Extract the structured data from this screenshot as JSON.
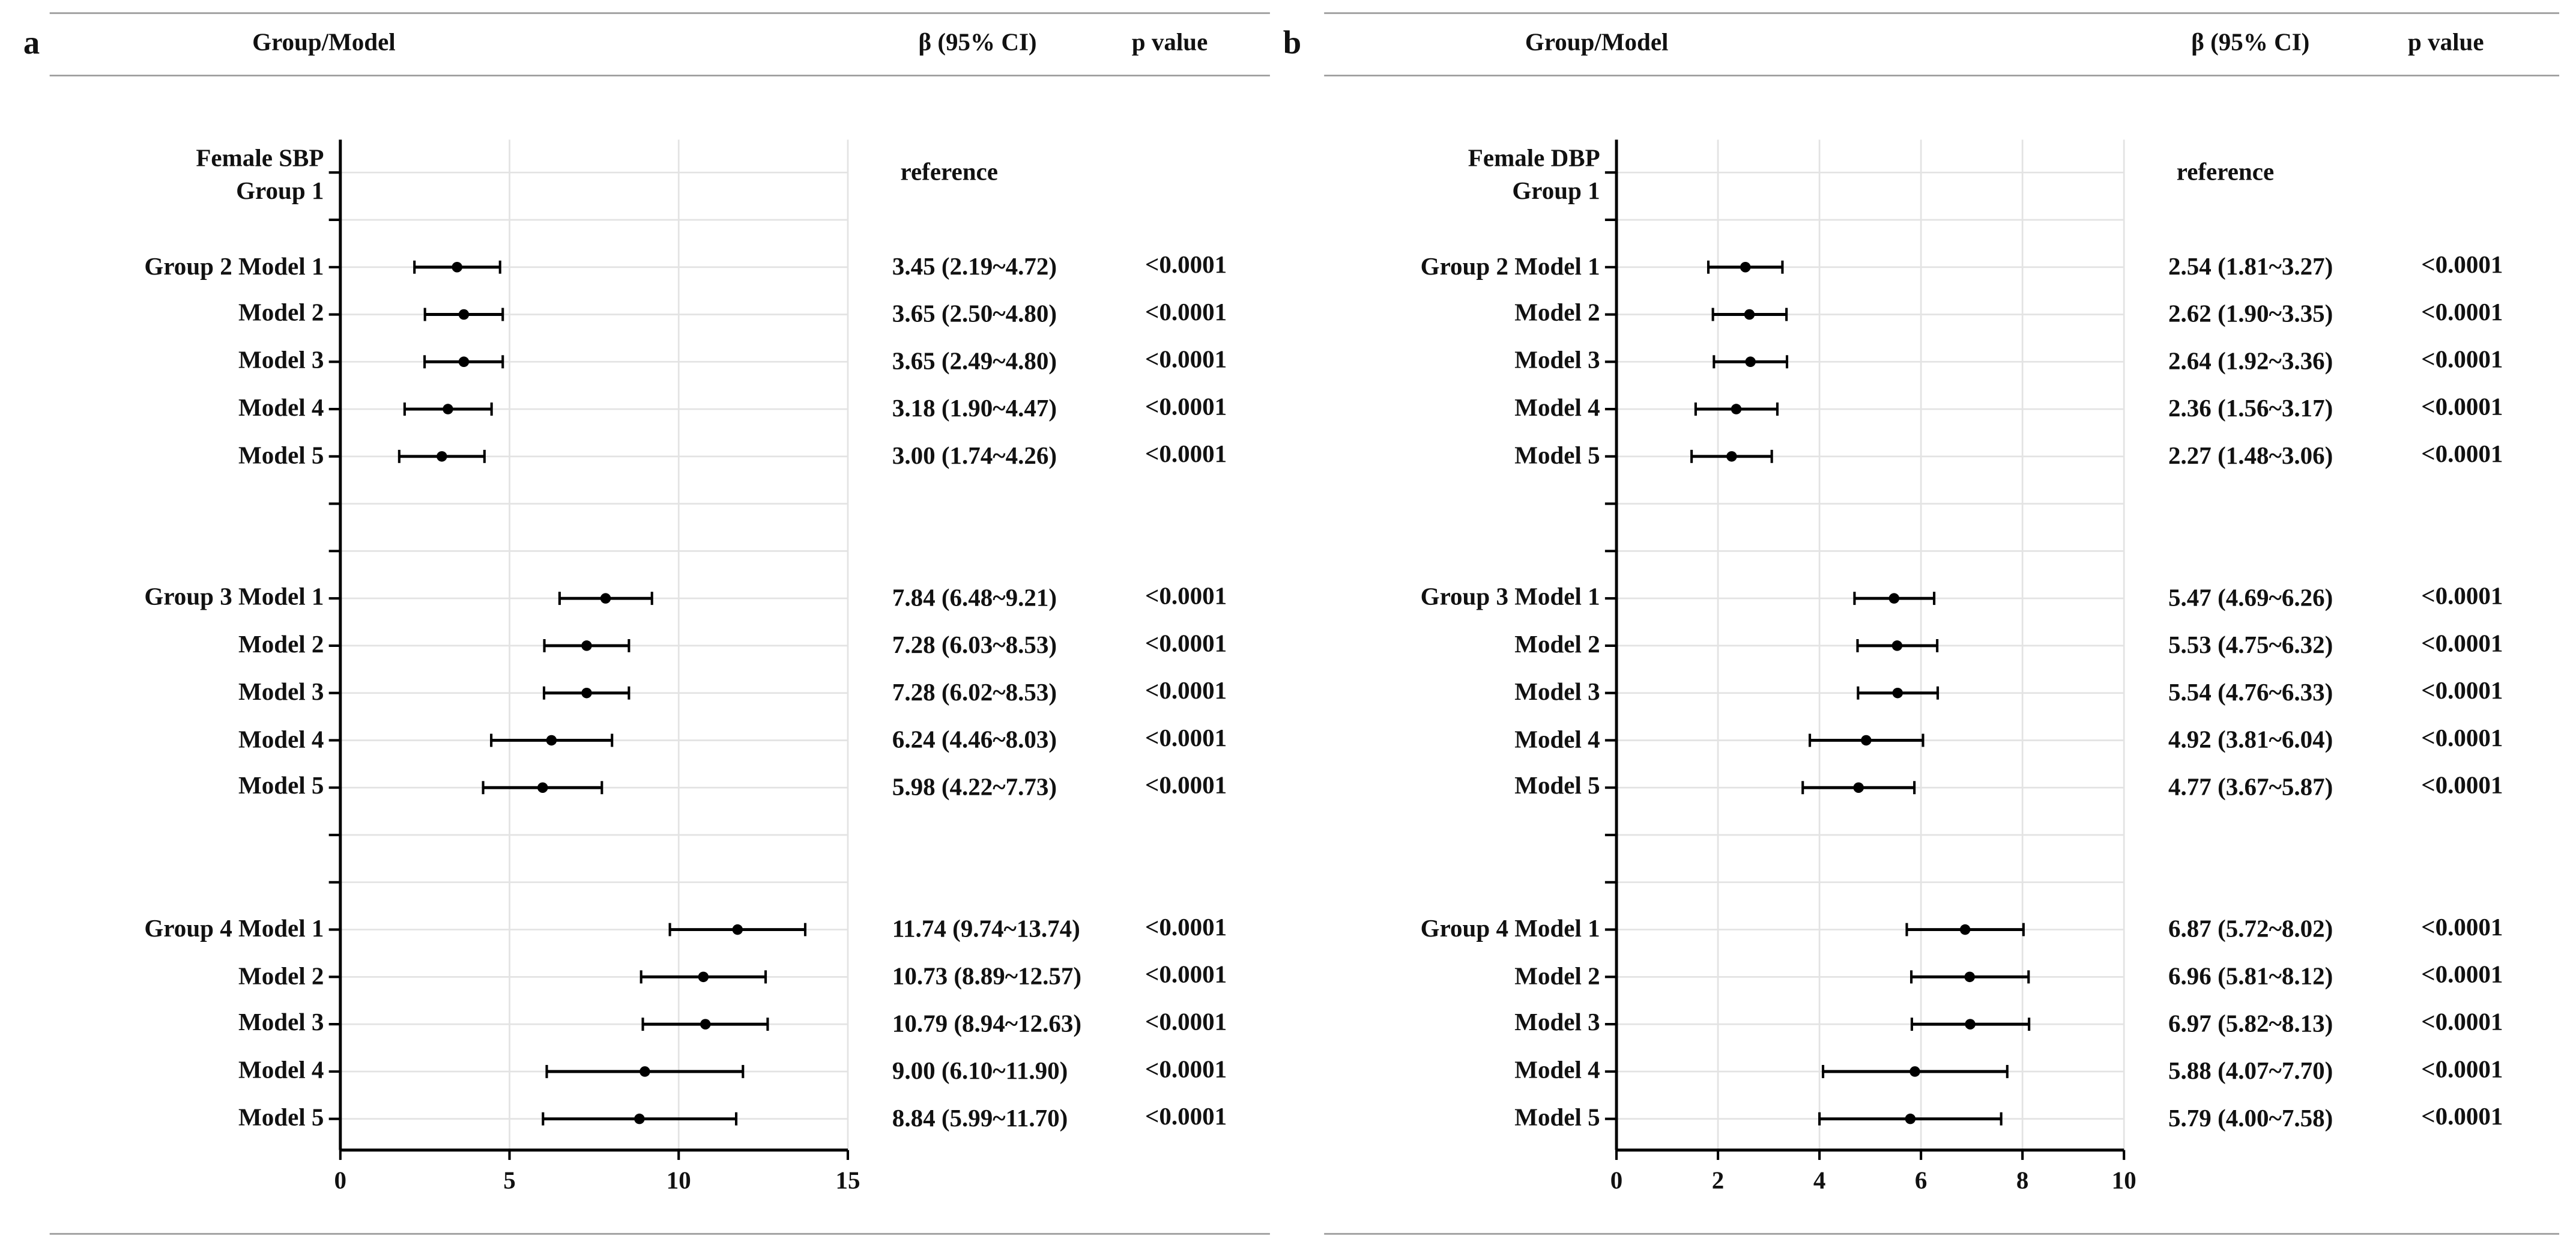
{
  "chart_data": [
    {
      "type": "forest",
      "panel_label": "a",
      "headers": {
        "group": "Group/Model",
        "ci": "β (95% CI)",
        "p": "p value"
      },
      "categories": [
        "Female SBP\nGroup 1",
        null,
        "Group 2 Model 1",
        "Model 2",
        "Model 3",
        "Model 4",
        "Model 5",
        null,
        null,
        "Group 3 Model 1",
        "Model 2",
        "Model 3",
        "Model 4",
        "Model 5",
        null,
        null,
        "Group 4 Model 1",
        "Model 2",
        "Model 3",
        "Model 4",
        "Model 5"
      ],
      "values": [
        null,
        null,
        3.45,
        3.65,
        3.65,
        3.18,
        3.0,
        null,
        null,
        7.84,
        7.28,
        7.28,
        6.24,
        5.98,
        null,
        null,
        11.74,
        10.73,
        10.79,
        9.0,
        8.84
      ],
      "lower": [
        null,
        null,
        2.19,
        2.5,
        2.49,
        1.9,
        1.74,
        null,
        null,
        6.48,
        6.03,
        6.02,
        4.46,
        4.22,
        null,
        null,
        9.74,
        8.89,
        8.94,
        6.1,
        5.99
      ],
      "upper": [
        null,
        null,
        4.72,
        4.8,
        4.8,
        4.47,
        4.26,
        null,
        null,
        9.21,
        8.53,
        8.53,
        8.03,
        7.73,
        null,
        null,
        13.74,
        12.57,
        12.63,
        11.9,
        11.7
      ],
      "value_labels": [
        "reference",
        null,
        "3.45 (2.19~4.72)",
        "3.65 (2.50~4.80)",
        "3.65 (2.49~4.80)",
        "3.18 (1.90~4.47)",
        "3.00 (1.74~4.26)",
        null,
        null,
        "7.84 (6.48~9.21)",
        "7.28 (6.03~8.53)",
        "7.28 (6.02~8.53)",
        "6.24 (4.46~8.03)",
        "5.98 (4.22~7.73)",
        null,
        null,
        "11.74 (9.74~13.74)",
        "10.73 (8.89~12.57)",
        "10.79 (8.94~12.63)",
        "9.00 (6.10~11.90)",
        "8.84 (5.99~11.70)"
      ],
      "p_labels": [
        null,
        null,
        "<0.0001",
        "<0.0001",
        "<0.0001",
        "<0.0001",
        "<0.0001",
        null,
        null,
        "<0.0001",
        "<0.0001",
        "<0.0001",
        "<0.0001",
        "<0.0001",
        null,
        null,
        "<0.0001",
        "<0.0001",
        "<0.0001",
        "<0.0001",
        "<0.0001"
      ],
      "color": "#000000",
      "xlim": [
        0,
        15
      ],
      "xticks": [
        0,
        5,
        10,
        15
      ],
      "grid": true
    },
    {
      "type": "forest",
      "panel_label": "b",
      "headers": {
        "group": "Group/Model",
        "ci": "β (95% CI)",
        "p": "p value"
      },
      "categories": [
        "Female DBP\nGroup 1",
        null,
        "Group 2 Model 1",
        "Model 2",
        "Model 3",
        "Model 4",
        "Model 5",
        null,
        null,
        "Group 3 Model 1",
        "Model 2",
        "Model 3",
        "Model 4",
        "Model 5",
        null,
        null,
        "Group 4 Model 1",
        "Model 2",
        "Model 3",
        "Model 4",
        "Model 5"
      ],
      "values": [
        null,
        null,
        2.54,
        2.62,
        2.64,
        2.36,
        2.27,
        null,
        null,
        5.47,
        5.53,
        5.54,
        4.92,
        4.77,
        null,
        null,
        6.87,
        6.96,
        6.97,
        5.88,
        5.79
      ],
      "lower": [
        null,
        null,
        1.81,
        1.9,
        1.92,
        1.56,
        1.48,
        null,
        null,
        4.69,
        4.75,
        4.76,
        3.81,
        3.67,
        null,
        null,
        5.72,
        5.81,
        5.82,
        4.07,
        4.0
      ],
      "upper": [
        null,
        null,
        3.27,
        3.35,
        3.36,
        3.17,
        3.06,
        null,
        null,
        6.26,
        6.32,
        6.33,
        6.04,
        5.87,
        null,
        null,
        8.02,
        8.12,
        8.13,
        7.7,
        7.58
      ],
      "value_labels": [
        "reference",
        null,
        "2.54 (1.81~3.27)",
        "2.62 (1.90~3.35)",
        "2.64 (1.92~3.36)",
        "2.36 (1.56~3.17)",
        "2.27 (1.48~3.06)",
        null,
        null,
        "5.47 (4.69~6.26)",
        "5.53 (4.75~6.32)",
        "5.54 (4.76~6.33)",
        "4.92 (3.81~6.04)",
        "4.77 (3.67~5.87)",
        null,
        null,
        "6.87 (5.72~8.02)",
        "6.96 (5.81~8.12)",
        "6.97 (5.82~8.13)",
        "5.88 (4.07~7.70)",
        "5.79 (4.00~7.58)"
      ],
      "p_labels": [
        null,
        null,
        "<0.0001",
        "<0.0001",
        "<0.0001",
        "<0.0001",
        "<0.0001",
        null,
        null,
        "<0.0001",
        "<0.0001",
        "<0.0001",
        "<0.0001",
        "<0.0001",
        null,
        null,
        "<0.0001",
        "<0.0001",
        "<0.0001",
        "<0.0001",
        "<0.0001"
      ],
      "color": "#000000",
      "xlim": [
        0,
        10
      ],
      "xticks": [
        0,
        2,
        4,
        6,
        8,
        10
      ],
      "grid": true
    }
  ]
}
